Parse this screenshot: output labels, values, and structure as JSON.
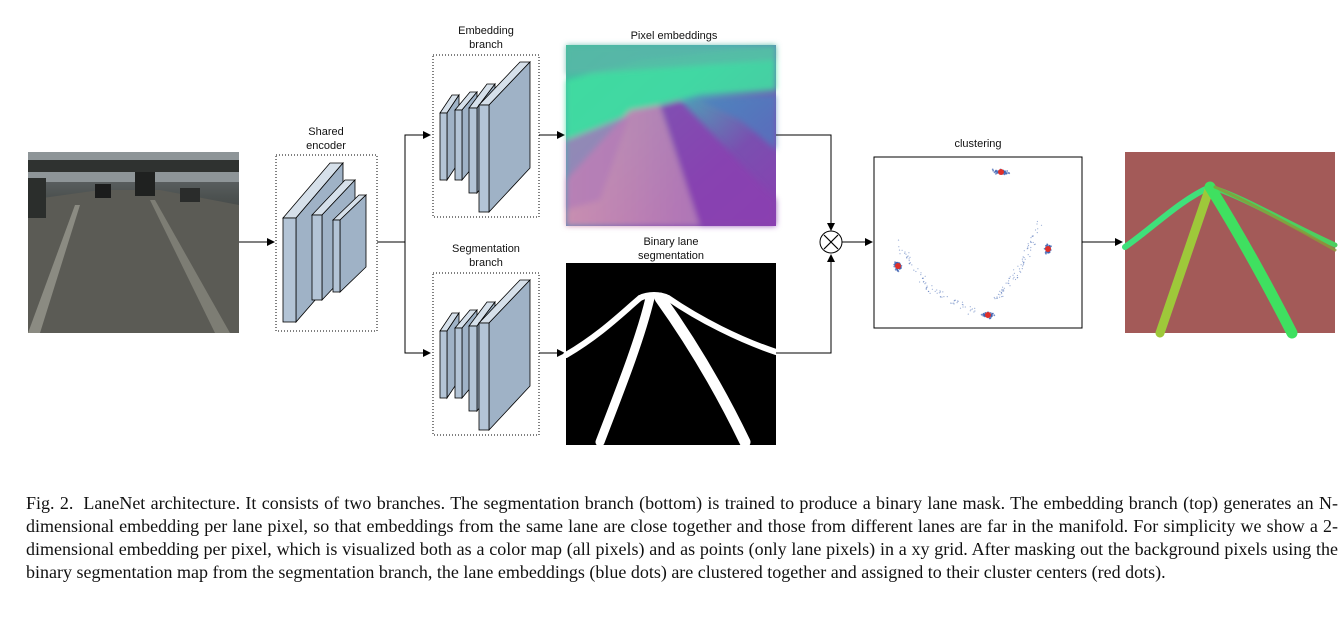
{
  "labels": {
    "shared_encoder": [
      "Shared",
      "encoder"
    ],
    "embedding_branch": [
      "Embedding",
      "branch"
    ],
    "segmentation_branch": [
      "Segmentation",
      "branch"
    ],
    "pixel_embeddings": "Pixel embeddings",
    "binary_lane_segmentation": [
      "Binary lane",
      "segmentation"
    ],
    "clustering": "clustering"
  },
  "caption": {
    "figure_label": "Fig. 2.",
    "text": "LaneNet architecture. It consists of two branches. The segmentation branch (bottom) is trained to produce a binary lane mask. The embedding branch (top) generates an N-dimensional embedding per lane pixel, so that embeddings from the same lane are close together and those from different lanes are far in the manifold. For simplicity we show a 2-dimensional embedding per pixel, which is visualized both as a color map (all pixels) and as points (only lane pixels) in a xy grid. After masking out the background pixels using the binary segmentation map from the segmentation branch, the lane embeddings (blue dots) are clustered together and assigned to their cluster centers (red dots)."
  },
  "colors": {
    "block_fill": "#b3c4d6",
    "cluster_point": "#3a5fb0",
    "cluster_center": "#e0302a",
    "output_background": "#a35a58"
  }
}
